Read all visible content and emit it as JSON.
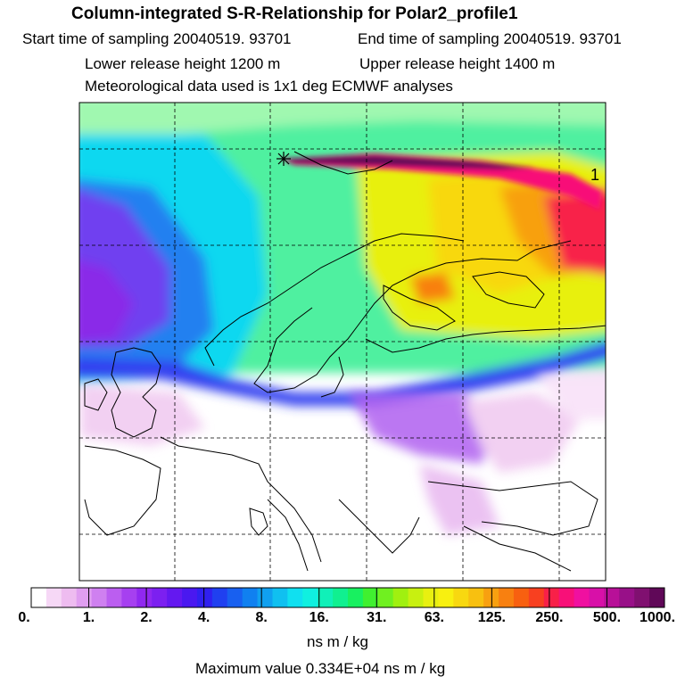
{
  "title": "Column-integrated S-R-Relationship for Polar2_profile1",
  "header": {
    "start": "Start time of sampling 20040519. 93701",
    "end": "End time of sampling 20040519. 93701",
    "lower": "Lower release height 1200 m",
    "upper": "Upper release height 1400 m",
    "met": "Meteorological data used is 1x1 deg ECMWF analyses"
  },
  "map": {
    "release_marker": "receptor-star-icon",
    "corner_label": "1"
  },
  "colorbar": {
    "tick_labels": [
      "0.",
      "1.",
      "2.",
      "4.",
      "8.",
      "16.",
      "31.",
      "63.",
      "125.",
      "250.",
      "500.",
      "1000."
    ],
    "colors": [
      "#ffffff",
      "#f6d8f6",
      "#eebcf0",
      "#e09ef0",
      "#cf80f0",
      "#bb5ef0",
      "#a640f0",
      "#9028f0",
      "#7c20f0",
      "#6418f0",
      "#4a18f0",
      "#3020f0",
      "#2040f0",
      "#1860f0",
      "#1080f0",
      "#10a0f0",
      "#10c0f0",
      "#10e0f0",
      "#10f0e0",
      "#10f0b8",
      "#10f090",
      "#18f060",
      "#40f030",
      "#70f020",
      "#a0f010",
      "#c8f010",
      "#e8f010",
      "#f8f010",
      "#f8d810",
      "#f8c010",
      "#f8a010",
      "#f88010",
      "#f86010",
      "#f84020",
      "#f82048",
      "#f81078",
      "#f010a0",
      "#d810a8",
      "#b81098",
      "#981088",
      "#801070",
      "#600858"
    ],
    "units": "ns m / kg",
    "max_value": "Maximum value  0.334E+04 ns m / kg"
  },
  "colors": {
    "border": "#000000",
    "coast": "#000000",
    "grid": "#000000"
  }
}
